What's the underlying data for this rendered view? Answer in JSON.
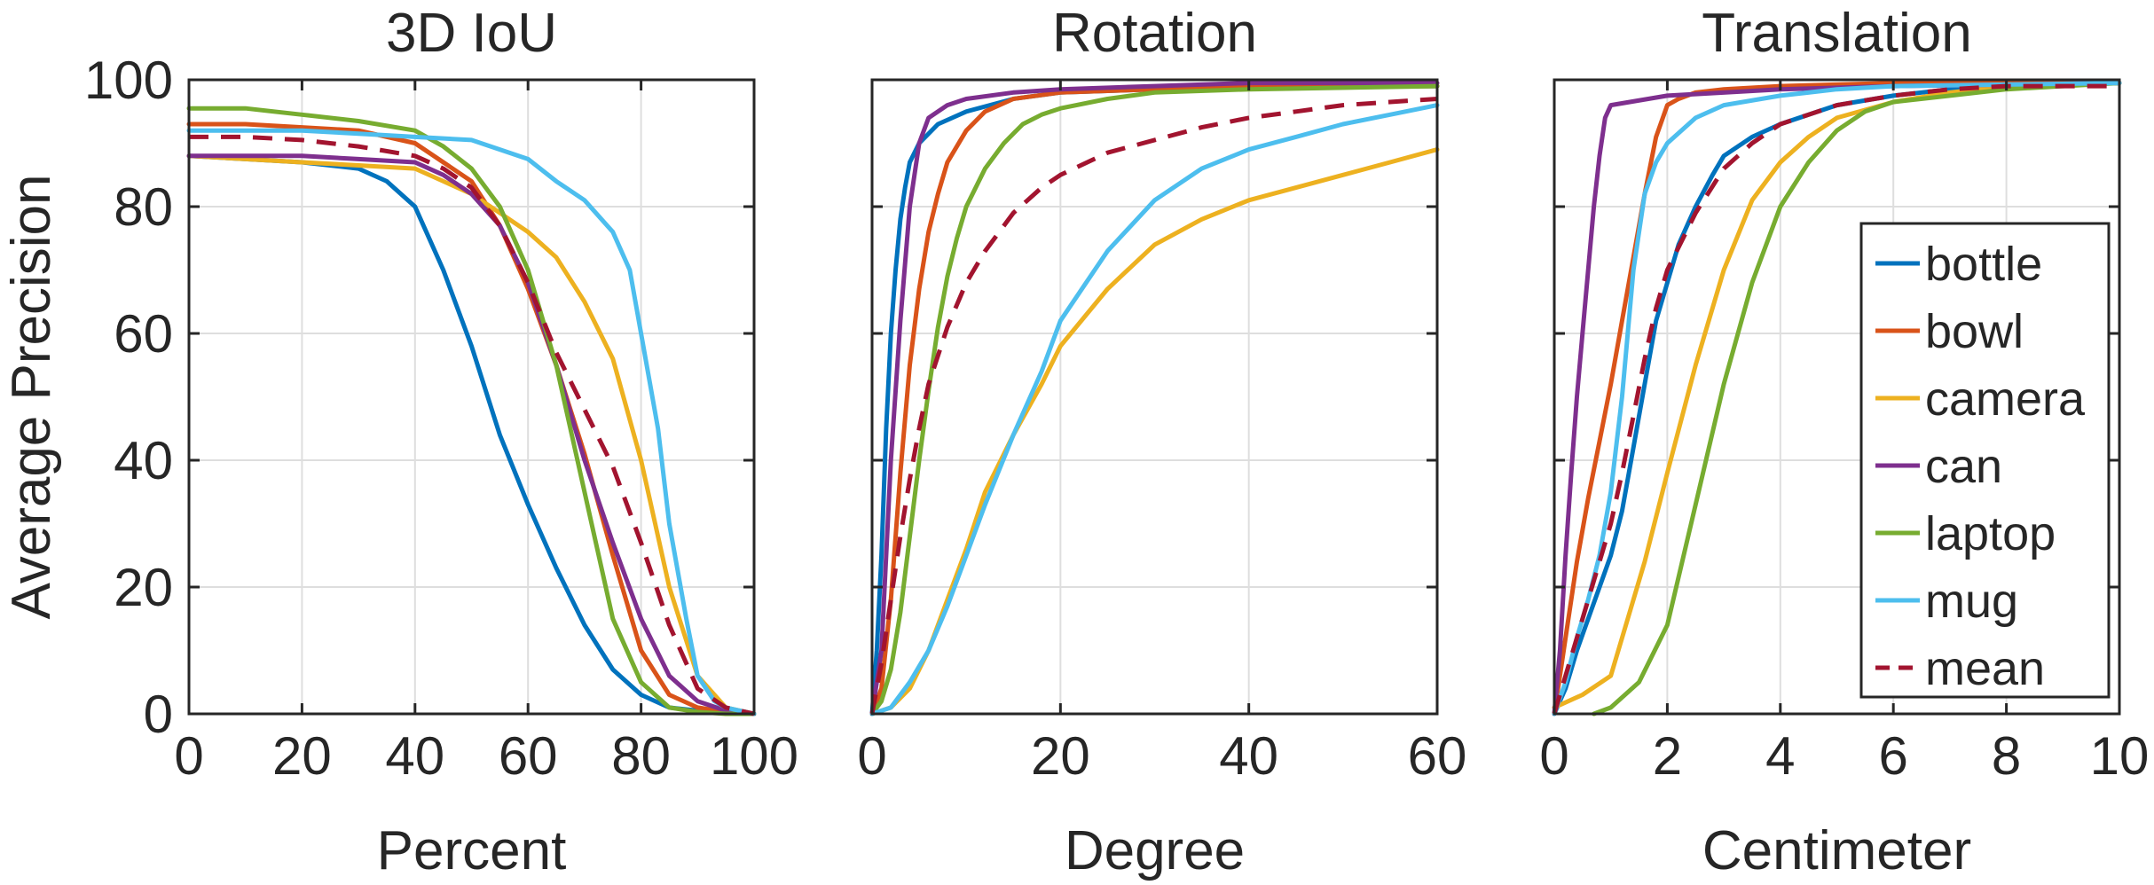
{
  "chart_data": [
    {
      "type": "line",
      "title": "3D IoU",
      "xlabel": "Percent",
      "ylabel": "Average Precision",
      "xlim": [
        0,
        100
      ],
      "ylim": [
        0,
        100
      ],
      "xticks": [
        "0",
        "20",
        "40",
        "60",
        "80",
        "100"
      ],
      "yticks": [
        "0",
        "20",
        "40",
        "60",
        "80",
        "100"
      ],
      "grid": true,
      "series": [
        {
          "name": "bottle",
          "color": "#0072BD",
          "dashed": false,
          "x": [
            0,
            10,
            20,
            30,
            35,
            40,
            45,
            50,
            55,
            60,
            65,
            70,
            75,
            80,
            85,
            90,
            95,
            100
          ],
          "y": [
            88,
            87.5,
            87,
            86,
            84,
            80,
            70,
            58,
            44,
            33,
            23,
            14,
            7,
            3,
            1,
            0.5,
            0.2,
            0
          ]
        },
        {
          "name": "bowl",
          "color": "#D95319",
          "dashed": false,
          "x": [
            0,
            10,
            20,
            30,
            40,
            45,
            50,
            55,
            60,
            65,
            70,
            75,
            80,
            85,
            90,
            95,
            100
          ],
          "y": [
            93,
            93,
            92.5,
            92,
            90,
            87,
            84,
            77,
            67,
            55,
            41,
            25,
            10,
            3,
            1,
            0.3,
            0
          ]
        },
        {
          "name": "camera",
          "color": "#EDB120",
          "dashed": false,
          "x": [
            0,
            10,
            20,
            30,
            40,
            45,
            50,
            55,
            60,
            65,
            70,
            75,
            80,
            85,
            90,
            95,
            100
          ],
          "y": [
            88,
            87.5,
            87,
            86.5,
            86,
            84,
            82,
            79,
            76,
            72,
            65,
            56,
            40,
            20,
            6,
            1,
            0
          ]
        },
        {
          "name": "can",
          "color": "#7E2F8E",
          "dashed": false,
          "x": [
            0,
            10,
            20,
            30,
            40,
            45,
            50,
            55,
            60,
            65,
            70,
            75,
            80,
            85,
            90,
            95,
            100
          ],
          "y": [
            88,
            88,
            88,
            87.5,
            87,
            85,
            82,
            77,
            68,
            55,
            40,
            27,
            15,
            6,
            2,
            0.5,
            0
          ]
        },
        {
          "name": "laptop",
          "color": "#77AC30",
          "dashed": false,
          "x": [
            0,
            10,
            20,
            30,
            40,
            45,
            50,
            55,
            60,
            65,
            70,
            75,
            80,
            85,
            90,
            95,
            100
          ],
          "y": [
            95.5,
            95.5,
            94.5,
            93.5,
            92,
            89.5,
            86,
            80,
            70,
            55,
            35,
            15,
            5,
            1,
            0.3,
            0,
            0
          ]
        },
        {
          "name": "mug",
          "color": "#4DBEEE",
          "dashed": false,
          "x": [
            0,
            10,
            20,
            30,
            40,
            50,
            55,
            60,
            65,
            70,
            75,
            78,
            80,
            83,
            85,
            88,
            90,
            93,
            95,
            100
          ],
          "y": [
            92,
            92,
            92,
            91.5,
            91,
            90.5,
            89,
            87.5,
            84,
            81,
            76,
            70,
            60,
            45,
            30,
            15,
            6,
            2,
            1,
            0
          ]
        },
        {
          "name": "mean",
          "color": "#A2142F",
          "dashed": true,
          "x": [
            0,
            10,
            20,
            30,
            40,
            45,
            50,
            55,
            60,
            65,
            70,
            75,
            80,
            85,
            90,
            95,
            100
          ],
          "y": [
            91,
            91,
            90.5,
            89.5,
            88,
            86,
            83,
            77,
            68,
            57,
            48,
            39,
            27,
            14,
            4,
            1,
            0
          ]
        }
      ]
    },
    {
      "type": "line",
      "title": "Rotation",
      "xlabel": "Degree",
      "ylabel": "",
      "xlim": [
        0,
        60
      ],
      "ylim": [
        0,
        100
      ],
      "xticks": [
        "0",
        "20",
        "40",
        "60"
      ],
      "yticks": [],
      "grid": true,
      "series": [
        {
          "name": "bottle",
          "color": "#0072BD",
          "dashed": false,
          "x": [
            0,
            0.5,
            1,
            1.5,
            2,
            2.5,
            3,
            3.5,
            4,
            5,
            7,
            10,
            15,
            20,
            30,
            40,
            60
          ],
          "y": [
            0,
            10,
            25,
            45,
            60,
            70,
            78,
            83,
            87,
            90,
            93,
            95,
            97,
            98,
            98.5,
            99,
            99
          ]
        },
        {
          "name": "bowl",
          "color": "#D95319",
          "dashed": false,
          "x": [
            0,
            1,
            2,
            3,
            4,
            5,
            6,
            7,
            8,
            10,
            12,
            15,
            20,
            30,
            40,
            60
          ],
          "y": [
            0,
            4,
            18,
            38,
            55,
            67,
            76,
            82,
            87,
            92,
            95,
            97,
            98,
            98.5,
            99,
            99
          ]
        },
        {
          "name": "camera",
          "color": "#EDB120",
          "dashed": false,
          "x": [
            0,
            2,
            4,
            6,
            8,
            10,
            12,
            15,
            18,
            20,
            25,
            30,
            35,
            40,
            45,
            50,
            55,
            60
          ],
          "y": [
            0,
            1,
            4,
            10,
            18,
            26,
            35,
            44,
            52,
            58,
            67,
            74,
            78,
            81,
            83,
            85,
            87,
            89
          ]
        },
        {
          "name": "can",
          "color": "#7E2F8E",
          "dashed": false,
          "x": [
            0,
            1,
            1.5,
            2,
            3,
            4,
            5,
            6,
            8,
            10,
            15,
            20,
            30,
            40,
            60
          ],
          "y": [
            0,
            10,
            25,
            40,
            62,
            80,
            90,
            94,
            96,
            97,
            98,
            98.5,
            99,
            99.5,
            99.5
          ]
        },
        {
          "name": "laptop",
          "color": "#77AC30",
          "dashed": false,
          "x": [
            0,
            1,
            2,
            3,
            4,
            5,
            6,
            7,
            8,
            9,
            10,
            12,
            14,
            16,
            18,
            20,
            25,
            30,
            40,
            60
          ],
          "y": [
            0,
            2,
            7,
            16,
            28,
            40,
            51,
            61,
            69,
            75,
            80,
            86,
            90,
            93,
            94.5,
            95.5,
            97,
            98,
            98.5,
            99
          ]
        },
        {
          "name": "mug",
          "color": "#4DBEEE",
          "dashed": false,
          "x": [
            0,
            2,
            4,
            6,
            8,
            10,
            12,
            15,
            18,
            20,
            25,
            30,
            35,
            40,
            45,
            50,
            55,
            60
          ],
          "y": [
            0,
            1,
            5,
            10,
            17,
            25,
            33,
            44,
            54,
            62,
            73,
            81,
            86,
            89,
            91,
            93,
            94.5,
            96
          ]
        },
        {
          "name": "mean",
          "color": "#A2142F",
          "dashed": true,
          "x": [
            0,
            1,
            2,
            3,
            4,
            5,
            6,
            8,
            10,
            12,
            15,
            18,
            20,
            25,
            30,
            35,
            40,
            45,
            50,
            55,
            60
          ],
          "y": [
            0,
            8,
            18,
            28,
            37,
            45,
            52,
            61,
            68,
            73,
            79,
            83,
            85,
            88.5,
            90.5,
            92.5,
            94,
            95,
            96,
            96.5,
            97
          ]
        }
      ]
    },
    {
      "type": "line",
      "title": "Translation",
      "xlabel": "Centimeter",
      "ylabel": "",
      "xlim": [
        0,
        10
      ],
      "ylim": [
        0,
        100
      ],
      "xticks": [
        "0",
        "2",
        "4",
        "6",
        "8",
        "10"
      ],
      "yticks": [],
      "grid": true,
      "legend_position": "right",
      "series": [
        {
          "name": "bottle",
          "color": "#0072BD",
          "dashed": false,
          "x": [
            0,
            0.2,
            0.4,
            0.6,
            0.8,
            1.0,
            1.2,
            1.4,
            1.6,
            1.8,
            2.0,
            2.2,
            2.5,
            2.8,
            3.0,
            3.5,
            4.0,
            5.0,
            6.0,
            7.0,
            8.0,
            10.0
          ],
          "y": [
            0,
            4,
            10,
            15,
            20,
            25,
            32,
            42,
            52,
            62,
            68,
            74,
            80,
            85,
            88,
            91,
            93,
            96,
            97.5,
            98.5,
            99,
            99.5
          ]
        },
        {
          "name": "bowl",
          "color": "#D95319",
          "dashed": false,
          "x": [
            0,
            0.2,
            0.4,
            0.6,
            0.8,
            1.0,
            1.2,
            1.4,
            1.6,
            1.8,
            2.0,
            2.2,
            2.5,
            3.0,
            4.0,
            6.0,
            10.0
          ],
          "y": [
            0,
            12,
            24,
            34,
            43,
            52,
            62,
            72,
            82,
            91,
            96,
            97,
            98,
            98.5,
            99,
            99.5,
            99.5
          ]
        },
        {
          "name": "camera",
          "color": "#EDB120",
          "dashed": false,
          "x": [
            0,
            0.5,
            1.0,
            1.3,
            1.6,
            2.0,
            2.5,
            3.0,
            3.5,
            4.0,
            4.5,
            5.0,
            6.0,
            7.0,
            8.0,
            10.0
          ],
          "y": [
            1,
            3,
            6,
            15,
            24,
            38,
            55,
            70,
            81,
            87,
            91,
            94,
            96.5,
            98,
            99,
            99.5
          ]
        },
        {
          "name": "can",
          "color": "#7E2F8E",
          "dashed": false,
          "x": [
            0,
            0.1,
            0.2,
            0.3,
            0.4,
            0.5,
            0.6,
            0.7,
            0.8,
            0.9,
            1.0,
            2.0,
            4.0,
            6.0,
            10.0
          ],
          "y": [
            0,
            10,
            25,
            38,
            50,
            60,
            70,
            80,
            88,
            94,
            96,
            97.5,
            98.5,
            99,
            99.5
          ]
        },
        {
          "name": "laptop",
          "color": "#77AC30",
          "dashed": false,
          "x": [
            0.7,
            1.0,
            1.5,
            2.0,
            2.5,
            3.0,
            3.5,
            4.0,
            4.5,
            5.0,
            5.5,
            6.0,
            7.0,
            8.0,
            9.0,
            10.0
          ],
          "y": [
            0,
            1,
            5,
            14,
            33,
            52,
            68,
            80,
            87,
            92,
            95,
            96.5,
            97.5,
            98.5,
            99,
            99.5
          ]
        },
        {
          "name": "mug",
          "color": "#4DBEEE",
          "dashed": false,
          "x": [
            0,
            0.2,
            0.4,
            0.6,
            0.8,
            1.0,
            1.2,
            1.4,
            1.6,
            1.8,
            2.0,
            2.5,
            3.0,
            4.0,
            5.0,
            6.0,
            10.0
          ],
          "y": [
            0,
            5,
            12,
            18,
            25,
            35,
            50,
            70,
            82,
            87,
            90,
            94,
            96,
            97.5,
            98.5,
            99,
            99.5
          ]
        },
        {
          "name": "mean",
          "color": "#A2142F",
          "dashed": true,
          "x": [
            0,
            0.2,
            0.4,
            0.6,
            0.8,
            1.0,
            1.2,
            1.4,
            1.6,
            1.8,
            2.0,
            2.5,
            3.0,
            3.5,
            4.0,
            5.0,
            6.0,
            7.0,
            8.0,
            9.0,
            10.0
          ],
          "y": [
            0,
            6,
            12,
            18,
            24,
            30,
            38,
            47,
            56,
            64,
            70,
            79,
            86,
            90,
            93,
            96,
            97.5,
            98.5,
            99,
            99,
            99
          ]
        }
      ]
    }
  ]
}
